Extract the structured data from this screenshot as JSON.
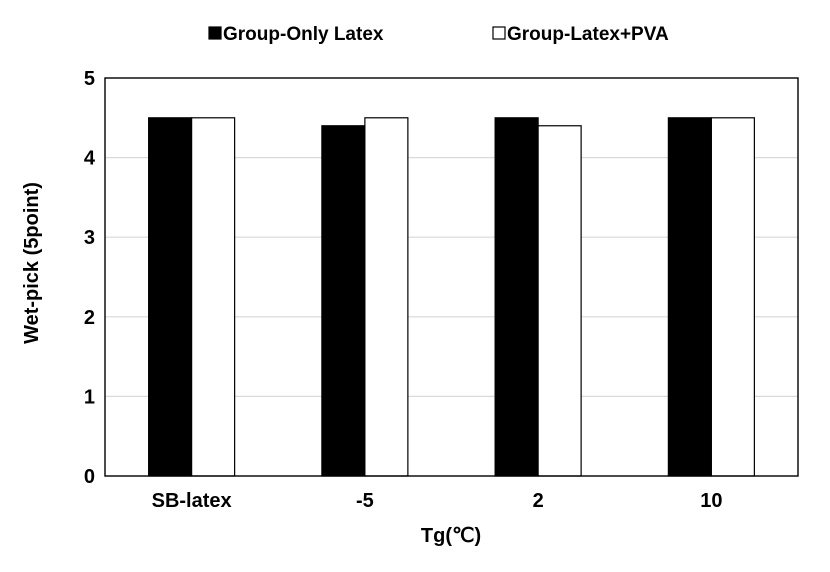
{
  "chart_data": {
    "type": "bar",
    "categories": [
      "SB-latex",
      "-5",
      "2",
      "10"
    ],
    "series": [
      {
        "name": "Group-Only Latex",
        "values": [
          4.5,
          4.4,
          4.5,
          4.5
        ],
        "color": "#000000"
      },
      {
        "name": "Group-Latex+PVA",
        "values": [
          4.5,
          4.5,
          4.4,
          4.5
        ],
        "color": "#ffffff"
      }
    ],
    "xlabel": "Tg(℃)",
    "ylabel": "Wet-pick (5point)",
    "ylim": [
      0,
      5
    ],
    "yticks": [
      "0",
      "1",
      "2",
      "3",
      "4",
      "5"
    ],
    "grid": true,
    "legend_position": "top"
  }
}
